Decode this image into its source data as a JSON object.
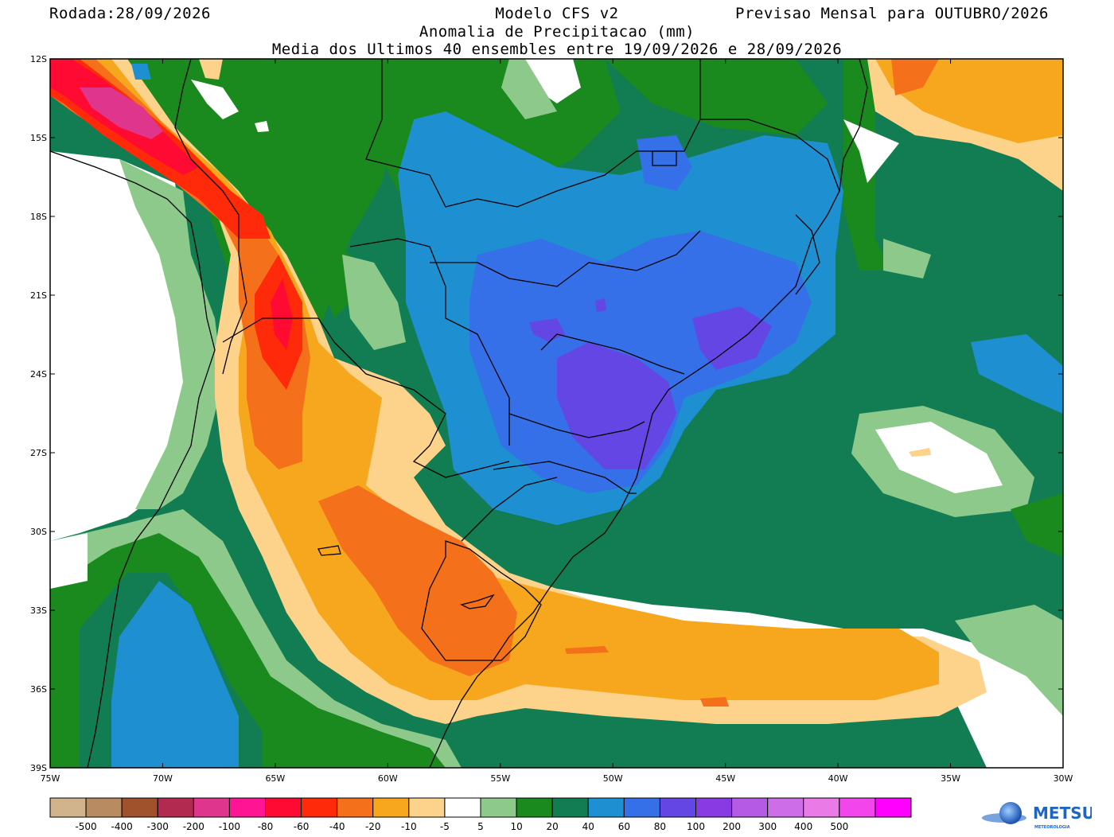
{
  "header": {
    "run_date": "Rodada:28/09/2026",
    "model": "Modelo CFS v2",
    "forecast": "Previsao Mensal para OUTUBRO/2026",
    "variable": "Anomalia de Precipitacao (mm)",
    "ensemble_note": "Media dos Ultimos 40 ensembles entre 19/09/2026 e 28/09/2026"
  },
  "map": {
    "lat_ticks": [
      "12S",
      "15S",
      "18S",
      "21S",
      "24S",
      "27S",
      "30S",
      "33S",
      "36S",
      "39S"
    ],
    "lon_ticks": [
      "75W",
      "70W",
      "65W",
      "60W",
      "55W",
      "50W",
      "45W",
      "40W",
      "35W",
      "30W"
    ],
    "extent": {
      "lon_min": -75,
      "lon_max": -30,
      "lat_max": -12,
      "lat_min": -39
    }
  },
  "colorbar": {
    "colors": [
      "#d2b48c",
      "#b98b61",
      "#a0522d",
      "#b22a4f",
      "#e0358c",
      "#ff1493",
      "#ff0a32",
      "#ff2a0a",
      "#f5701a",
      "#f7a71d",
      "#fdd28a",
      "#ffffff",
      "#8ec98c",
      "#1a8a1f",
      "#127d52",
      "#1e8fd0",
      "#3570e8",
      "#6446e5",
      "#8a3ae3",
      "#b45ae5",
      "#cd6ee8",
      "#e97ae6",
      "#f245ec",
      "#ff00ff"
    ],
    "labels": [
      "-500",
      "-400",
      "-300",
      "-200",
      "-100",
      "-80",
      "-60",
      "-40",
      "-20",
      "-10",
      "-5",
      "5",
      "10",
      "20",
      "40",
      "60",
      "80",
      "100",
      "200",
      "300",
      "400",
      "500"
    ]
  },
  "palette": {
    "green_light": "#8ec98c",
    "green": "#1a8a1f",
    "teal": "#127d52",
    "blue_light": "#1e8fd0",
    "blue": "#3570e8",
    "indigo": "#6446e5",
    "yellow_light": "#fdd28a",
    "orange_light": "#f7a71d",
    "orange": "#f5701a",
    "red": "#ff2a0a",
    "red_dark": "#ff0a32",
    "magenta": "#e0358c"
  },
  "logo": {
    "brand": "METSUL",
    "tagline": "METEOROLOGIA"
  }
}
